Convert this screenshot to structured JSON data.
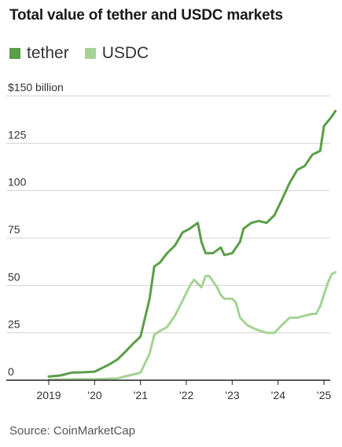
{
  "header": {
    "title": "Total value of tether and USDC markets"
  },
  "footer": {
    "source": "Source: CoinMarketCap"
  },
  "colors": {
    "tether": "#5a9e48",
    "usdc": "#a5d395",
    "grid": "#d3d3d3",
    "axis": "#222222"
  },
  "chart_data": {
    "type": "line",
    "title": "Total value of tether and USDC markets",
    "ylabel": "",
    "xlabel": "",
    "y_unit_label": "$150 billion",
    "ylim": [
      0,
      150
    ],
    "xlim": [
      2018.95,
      2025.3
    ],
    "y_ticks": [
      {
        "value": 150,
        "label": "$150 billion"
      },
      {
        "value": 125,
        "label": "125"
      },
      {
        "value": 100,
        "label": "100"
      },
      {
        "value": 75,
        "label": "75"
      },
      {
        "value": 50,
        "label": "50"
      },
      {
        "value": 25,
        "label": "25"
      },
      {
        "value": 0,
        "label": "0"
      }
    ],
    "x_ticks": [
      {
        "value": 2019,
        "label": "2019"
      },
      {
        "value": 2020,
        "label": "’20"
      },
      {
        "value": 2021,
        "label": "’21"
      },
      {
        "value": 2022,
        "label": "’22"
      },
      {
        "value": 2023,
        "label": "’23"
      },
      {
        "value": 2024,
        "label": "’24"
      },
      {
        "value": 2025,
        "label": "’25"
      }
    ],
    "grid": true,
    "legend": "top-left",
    "series": [
      {
        "name": "tether",
        "color": "#5a9e48",
        "points": [
          [
            2019.0,
            2.0
          ],
          [
            2019.25,
            2.5
          ],
          [
            2019.5,
            4.0
          ],
          [
            2019.75,
            4.2
          ],
          [
            2020.0,
            4.5
          ],
          [
            2020.17,
            6.5
          ],
          [
            2020.33,
            8.5
          ],
          [
            2020.5,
            11
          ],
          [
            2020.67,
            15
          ],
          [
            2020.83,
            19
          ],
          [
            2021.0,
            23
          ],
          [
            2021.1,
            33
          ],
          [
            2021.2,
            43
          ],
          [
            2021.3,
            60
          ],
          [
            2021.42,
            62
          ],
          [
            2021.58,
            67
          ],
          [
            2021.75,
            71
          ],
          [
            2021.92,
            78
          ],
          [
            2022.08,
            80
          ],
          [
            2022.25,
            83
          ],
          [
            2022.33,
            73
          ],
          [
            2022.42,
            67
          ],
          [
            2022.58,
            67
          ],
          [
            2022.75,
            70
          ],
          [
            2022.83,
            66
          ],
          [
            2023.0,
            67
          ],
          [
            2023.17,
            73
          ],
          [
            2023.25,
            80
          ],
          [
            2023.42,
            83
          ],
          [
            2023.58,
            84
          ],
          [
            2023.75,
            83
          ],
          [
            2023.92,
            87
          ],
          [
            2024.08,
            95
          ],
          [
            2024.25,
            104
          ],
          [
            2024.42,
            111
          ],
          [
            2024.58,
            113
          ],
          [
            2024.75,
            119
          ],
          [
            2024.92,
            121
          ],
          [
            2025.0,
            134
          ],
          [
            2025.17,
            139
          ],
          [
            2025.25,
            142
          ]
        ]
      },
      {
        "name": "USDC",
        "color": "#a5d395",
        "points": [
          [
            2019.0,
            0.3
          ],
          [
            2019.5,
            0.5
          ],
          [
            2020.0,
            0.5
          ],
          [
            2020.5,
            1.0
          ],
          [
            2020.75,
            2.5
          ],
          [
            2021.0,
            4.0
          ],
          [
            2021.1,
            9.0
          ],
          [
            2021.2,
            14
          ],
          [
            2021.3,
            24
          ],
          [
            2021.42,
            26
          ],
          [
            2021.58,
            28
          ],
          [
            2021.75,
            34
          ],
          [
            2021.92,
            42
          ],
          [
            2022.08,
            50
          ],
          [
            2022.17,
            53
          ],
          [
            2022.33,
            49
          ],
          [
            2022.42,
            55
          ],
          [
            2022.5,
            55
          ],
          [
            2022.67,
            49
          ],
          [
            2022.75,
            45
          ],
          [
            2022.83,
            43
          ],
          [
            2023.0,
            43
          ],
          [
            2023.08,
            41
          ],
          [
            2023.17,
            33
          ],
          [
            2023.33,
            29
          ],
          [
            2023.5,
            27
          ],
          [
            2023.75,
            25
          ],
          [
            2023.92,
            25
          ],
          [
            2024.08,
            29
          ],
          [
            2024.25,
            33
          ],
          [
            2024.42,
            33
          ],
          [
            2024.58,
            34
          ],
          [
            2024.75,
            35
          ],
          [
            2024.83,
            35
          ],
          [
            2024.92,
            39
          ],
          [
            2025.0,
            45
          ],
          [
            2025.08,
            51
          ],
          [
            2025.17,
            56
          ],
          [
            2025.25,
            57
          ]
        ]
      }
    ]
  }
}
